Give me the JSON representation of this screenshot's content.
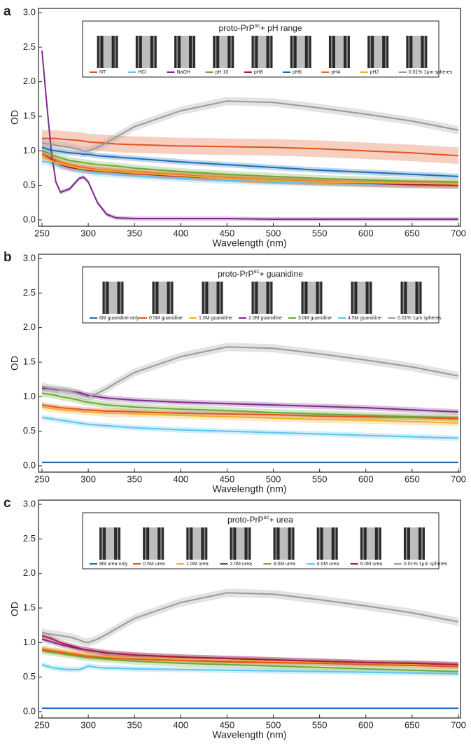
{
  "chart_data": [
    {
      "type": "line",
      "panel": "a",
      "title": {
        "text": "proto-PrP",
        "superscript": "sc",
        "suffix": "+ pH range"
      },
      "x_label": "Wavelength (nm)",
      "y_label": "OD",
      "xlim": [
        250,
        700
      ],
      "ylim": [
        0,
        3
      ],
      "xticks": [
        250,
        300,
        350,
        400,
        450,
        500,
        550,
        600,
        650,
        700
      ],
      "yticks": [
        {
          "value": 0,
          "label": "0.0"
        },
        0.5,
        {
          "value": 1,
          "label": "1.0"
        },
        1.5,
        {
          "value": 2,
          "label": "2.0"
        },
        2.5,
        {
          "value": 3,
          "label": "3.0"
        }
      ],
      "x": [
        250,
        255,
        260,
        265,
        270,
        280,
        290,
        295,
        300,
        310,
        320,
        330,
        350,
        400,
        450,
        500,
        550,
        600,
        650,
        700
      ],
      "series": [
        {
          "name": "NT",
          "color": "#e2531f",
          "error": 0.12,
          "values": [
            1.18,
            1.18,
            1.18,
            1.18,
            1.17,
            1.16,
            1.15,
            1.14,
            1.13,
            1.12,
            1.11,
            1.1,
            1.09,
            1.07,
            1.06,
            1.05,
            1.03,
            1.0,
            0.97,
            0.93
          ]
        },
        {
          "name": "HCl",
          "color": "#5cc5ef",
          "error": 0.05,
          "values": [
            0.85,
            0.84,
            0.82,
            0.8,
            0.78,
            0.75,
            0.72,
            0.71,
            0.7,
            0.68,
            0.67,
            0.66,
            0.64,
            0.6,
            0.57,
            0.55,
            0.53,
            0.52,
            0.51,
            0.5
          ]
        },
        {
          "name": "NaOH",
          "color": "#7d2a8c",
          "error": 0.03,
          "values": [
            2.45,
            1.7,
            1.0,
            0.55,
            0.4,
            0.45,
            0.6,
            0.62,
            0.55,
            0.25,
            0.08,
            0.03,
            0.02,
            0.02,
            0.02,
            0.01,
            0.01,
            0.01,
            0.01,
            0.01
          ]
        },
        {
          "name": "pH 10",
          "color": "#6aa837",
          "error": 0.05,
          "values": [
            1.0,
            0.98,
            0.95,
            0.92,
            0.9,
            0.86,
            0.84,
            0.83,
            0.82,
            0.8,
            0.79,
            0.78,
            0.75,
            0.7,
            0.66,
            0.63,
            0.6,
            0.58,
            0.56,
            0.55
          ]
        },
        {
          "name": "pH8",
          "color": "#a51c3c",
          "error": 0.05,
          "values": [
            0.95,
            0.92,
            0.88,
            0.84,
            0.8,
            0.76,
            0.74,
            0.73,
            0.72,
            0.71,
            0.7,
            0.69,
            0.67,
            0.63,
            0.6,
            0.57,
            0.55,
            0.53,
            0.51,
            0.5
          ]
        },
        {
          "name": "pH6",
          "color": "#1b6cb8",
          "error": 0.04,
          "values": [
            1.05,
            1.03,
            1.01,
            1.0,
            0.99,
            0.97,
            0.96,
            0.95,
            0.95,
            0.93,
            0.92,
            0.91,
            0.89,
            0.84,
            0.8,
            0.76,
            0.72,
            0.69,
            0.66,
            0.63
          ]
        },
        {
          "name": "pH4",
          "color": "#e86a2a",
          "error": 0.05,
          "values": [
            0.95,
            0.93,
            0.9,
            0.87,
            0.84,
            0.8,
            0.77,
            0.76,
            0.75,
            0.73,
            0.72,
            0.71,
            0.69,
            0.65,
            0.61,
            0.58,
            0.56,
            0.54,
            0.53,
            0.52
          ]
        },
        {
          "name": "pH2",
          "color": "#f1ae2d",
          "error": 0.05,
          "values": [
            0.9,
            0.88,
            0.86,
            0.83,
            0.81,
            0.78,
            0.75,
            0.74,
            0.73,
            0.72,
            0.71,
            0.7,
            0.68,
            0.64,
            0.6,
            0.57,
            0.55,
            0.54,
            0.53,
            0.52
          ]
        },
        {
          "name": "0.01% 1μm spheres",
          "color": "#9a9a9a",
          "error": 0.06,
          "values": [
            1.12,
            1.1,
            1.1,
            1.08,
            1.07,
            1.05,
            1.02,
            1.0,
            1.0,
            1.05,
            1.12,
            1.2,
            1.35,
            1.58,
            1.72,
            1.7,
            1.62,
            1.53,
            1.43,
            1.3
          ]
        }
      ]
    },
    {
      "type": "line",
      "panel": "b",
      "title": {
        "text": "proto-PrP",
        "superscript": "sc",
        "suffix": "+ guanidine"
      },
      "x_label": "Wavelength (nm)",
      "y_label": "OD",
      "xlim": [
        250,
        700
      ],
      "ylim": [
        0,
        3
      ],
      "xticks": [
        250,
        300,
        350,
        400,
        450,
        500,
        550,
        600,
        650,
        700
      ],
      "yticks": [
        {
          "value": 0,
          "label": "0.0"
        },
        0.5,
        {
          "value": 1,
          "label": "1.0"
        },
        1.5,
        {
          "value": 2,
          "label": "2.0"
        },
        2.5,
        {
          "value": 3,
          "label": "3.0"
        }
      ],
      "x": [
        250,
        255,
        260,
        265,
        270,
        280,
        290,
        295,
        300,
        310,
        320,
        330,
        350,
        400,
        450,
        500,
        550,
        600,
        650,
        700
      ],
      "series": [
        {
          "name": "6M guanidine only",
          "color": "#1b6cb8",
          "error": 0.01,
          "values": [
            0.05,
            0.05,
            0.05,
            0.05,
            0.05,
            0.05,
            0.05,
            0.05,
            0.05,
            0.05,
            0.05,
            0.05,
            0.05,
            0.05,
            0.05,
            0.05,
            0.05,
            0.05,
            0.05,
            0.05
          ]
        },
        {
          "name": "0.5M guanidine",
          "color": "#e2531f",
          "error": 0.04,
          "values": [
            0.88,
            0.87,
            0.86,
            0.85,
            0.84,
            0.83,
            0.82,
            0.81,
            0.81,
            0.8,
            0.79,
            0.79,
            0.78,
            0.76,
            0.75,
            0.74,
            0.72,
            0.71,
            0.7,
            0.68
          ]
        },
        {
          "name": "1.0M guanidine",
          "color": "#f1ae2d",
          "error": 0.05,
          "values": [
            0.85,
            0.84,
            0.83,
            0.82,
            0.81,
            0.8,
            0.79,
            0.78,
            0.78,
            0.77,
            0.76,
            0.76,
            0.75,
            0.73,
            0.71,
            0.69,
            0.67,
            0.66,
            0.64,
            0.62
          ]
        },
        {
          "name": "2.0M guanidine",
          "color": "#7d2a8c",
          "error": 0.04,
          "values": [
            1.12,
            1.12,
            1.11,
            1.1,
            1.1,
            1.08,
            1.06,
            1.04,
            1.02,
            1.0,
            0.98,
            0.97,
            0.95,
            0.92,
            0.9,
            0.88,
            0.86,
            0.84,
            0.81,
            0.78
          ]
        },
        {
          "name": "3.0M guanidine",
          "color": "#6aa837",
          "error": 0.05,
          "values": [
            1.05,
            1.04,
            1.03,
            1.02,
            1.0,
            0.98,
            0.95,
            0.93,
            0.92,
            0.9,
            0.88,
            0.87,
            0.85,
            0.82,
            0.8,
            0.77,
            0.75,
            0.73,
            0.71,
            0.7
          ]
        },
        {
          "name": "4.5M guanidine",
          "color": "#5cc5ef",
          "error": 0.04,
          "values": [
            0.7,
            0.69,
            0.68,
            0.67,
            0.66,
            0.64,
            0.62,
            0.61,
            0.6,
            0.59,
            0.58,
            0.57,
            0.55,
            0.52,
            0.5,
            0.48,
            0.46,
            0.44,
            0.42,
            0.4
          ]
        },
        {
          "name": "0.01% 1μm spheres",
          "color": "#9a9a9a",
          "error": 0.06,
          "values": [
            1.15,
            1.13,
            1.12,
            1.11,
            1.1,
            1.08,
            1.04,
            1.01,
            1.0,
            1.05,
            1.12,
            1.2,
            1.35,
            1.58,
            1.72,
            1.7,
            1.62,
            1.53,
            1.43,
            1.3
          ]
        }
      ]
    },
    {
      "type": "line",
      "panel": "c",
      "title": {
        "text": "proto-PrP",
        "superscript": "sc",
        "suffix": "+ urea"
      },
      "x_label": "Wavelength (nm)",
      "y_label": "OD",
      "xlim": [
        250,
        700
      ],
      "ylim": [
        0,
        3
      ],
      "xticks": [
        250,
        300,
        350,
        400,
        450,
        500,
        550,
        600,
        650,
        700
      ],
      "yticks": [
        {
          "value": 0,
          "label": "0.0"
        },
        0.5,
        {
          "value": 1,
          "label": "1.0"
        },
        1.5,
        {
          "value": 2,
          "label": "2.0"
        },
        2.5,
        {
          "value": 3,
          "label": "3.0"
        }
      ],
      "x": [
        250,
        255,
        260,
        265,
        270,
        280,
        290,
        295,
        300,
        310,
        320,
        330,
        350,
        400,
        450,
        500,
        550,
        600,
        650,
        700
      ],
      "series": [
        {
          "name": "8M urea only",
          "color": "#1b6cb8",
          "error": 0.01,
          "values": [
            0.05,
            0.05,
            0.05,
            0.05,
            0.05,
            0.05,
            0.05,
            0.05,
            0.05,
            0.05,
            0.05,
            0.05,
            0.05,
            0.05,
            0.05,
            0.05,
            0.05,
            0.05,
            0.05,
            0.05
          ]
        },
        {
          "name": "0.5M urea",
          "color": "#e2531f",
          "error": 0.04,
          "values": [
            0.9,
            0.89,
            0.88,
            0.87,
            0.86,
            0.84,
            0.82,
            0.81,
            0.8,
            0.79,
            0.78,
            0.77,
            0.76,
            0.74,
            0.72,
            0.71,
            0.7,
            0.69,
            0.67,
            0.65
          ]
        },
        {
          "name": "1.0M urea",
          "color": "#f1ae2d",
          "error": 0.04,
          "values": [
            0.92,
            0.91,
            0.9,
            0.89,
            0.88,
            0.86,
            0.84,
            0.83,
            0.82,
            0.81,
            0.8,
            0.79,
            0.78,
            0.76,
            0.75,
            0.73,
            0.72,
            0.7,
            0.69,
            0.67
          ]
        },
        {
          "name": "2.0M urea",
          "color": "#7d2a8c",
          "error": 0.04,
          "values": [
            1.05,
            1.03,
            1.01,
            0.99,
            0.97,
            0.94,
            0.91,
            0.9,
            0.89,
            0.87,
            0.85,
            0.84,
            0.82,
            0.79,
            0.77,
            0.75,
            0.73,
            0.71,
            0.7,
            0.68
          ]
        },
        {
          "name": "3.0M urea",
          "color": "#6aa837",
          "error": 0.05,
          "values": [
            0.88,
            0.87,
            0.86,
            0.85,
            0.84,
            0.82,
            0.8,
            0.79,
            0.78,
            0.77,
            0.76,
            0.75,
            0.73,
            0.7,
            0.68,
            0.66,
            0.64,
            0.62,
            0.6,
            0.58
          ]
        },
        {
          "name": "4.0M urea",
          "color": "#5cc5ef",
          "error": 0.04,
          "values": [
            0.68,
            0.66,
            0.64,
            0.63,
            0.62,
            0.61,
            0.61,
            0.63,
            0.66,
            0.64,
            0.63,
            0.63,
            0.62,
            0.61,
            0.6,
            0.59,
            0.58,
            0.57,
            0.56,
            0.55
          ]
        },
        {
          "name": "6.0M urea",
          "color": "#a51c3c",
          "error": 0.04,
          "values": [
            1.1,
            1.08,
            1.06,
            1.03,
            1.0,
            0.96,
            0.92,
            0.9,
            0.89,
            0.87,
            0.85,
            0.84,
            0.82,
            0.79,
            0.77,
            0.75,
            0.73,
            0.71,
            0.7,
            0.68
          ]
        },
        {
          "name": "0.01% 1μm spheres",
          "color": "#9a9a9a",
          "error": 0.06,
          "values": [
            1.15,
            1.13,
            1.12,
            1.11,
            1.1,
            1.08,
            1.04,
            1.01,
            1.0,
            1.05,
            1.12,
            1.2,
            1.35,
            1.58,
            1.72,
            1.7,
            1.62,
            1.53,
            1.43,
            1.3
          ]
        }
      ]
    }
  ]
}
